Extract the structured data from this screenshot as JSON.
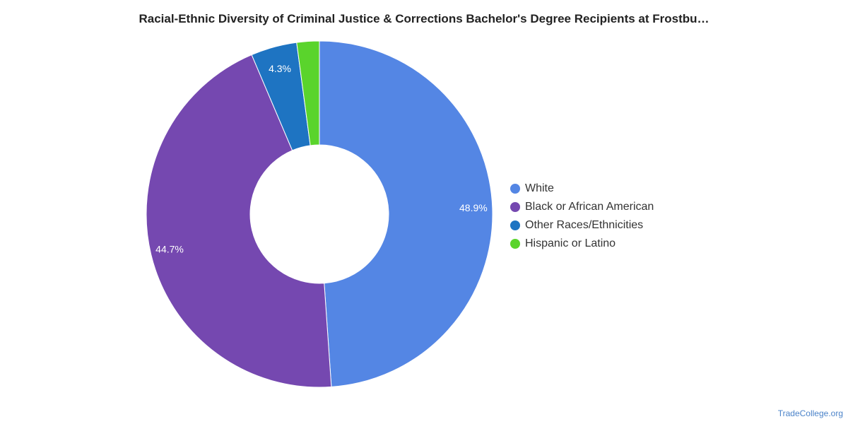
{
  "chart_data": {
    "type": "pie",
    "variant": "donut",
    "title": "Racial-Ethnic Diversity of Criminal Justice & Corrections Bachelor's Degree Recipients at Frostbu…",
    "categories": [
      "White",
      "Black or African American",
      "Other Races/Ethnicities",
      "Hispanic or Latino"
    ],
    "values": [
      48.9,
      44.7,
      4.3,
      2.1
    ],
    "data_labels": [
      "48.9%",
      "44.7%",
      "4.3%",
      ""
    ],
    "colors": [
      "#5486e4",
      "#7548b0",
      "#1e74c2",
      "#5ad42c"
    ],
    "legend_placement": "right"
  },
  "source": {
    "text": "TradeCollege.org"
  }
}
